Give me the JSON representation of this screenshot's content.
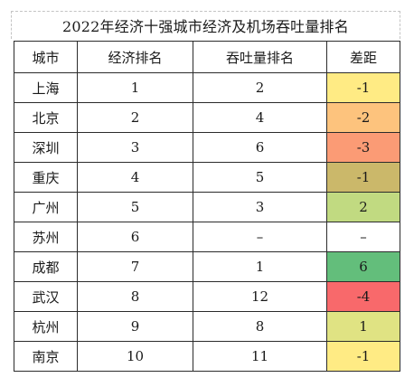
{
  "title": "2022年经济十强城市经济及机场吞吐量排名",
  "headers": {
    "city": "城市",
    "economy_rank": "经济排名",
    "throughput_rank": "吞吐量排名",
    "gap": "差距"
  },
  "rows": [
    {
      "city": "上海",
      "economy_rank": "1",
      "throughput_rank": "2",
      "gap": "-1",
      "gap_color": "#ffeb84"
    },
    {
      "city": "北京",
      "economy_rank": "2",
      "throughput_rank": "4",
      "gap": "-2",
      "gap_color": "#fdc37d"
    },
    {
      "city": "深圳",
      "economy_rank": "3",
      "throughput_rank": "6",
      "gap": "-3",
      "gap_color": "#fb9b75"
    },
    {
      "city": "重庆",
      "economy_rank": "4",
      "throughput_rank": "5",
      "gap": "-1",
      "gap_color": "#cbb86a"
    },
    {
      "city": "广州",
      "economy_rank": "5",
      "throughput_rank": "3",
      "gap": "2",
      "gap_color": "#c1da81"
    },
    {
      "city": "苏州",
      "economy_rank": "6",
      "throughput_rank": "–",
      "gap": "–",
      "gap_color": "#ffffff"
    },
    {
      "city": "成都",
      "economy_rank": "7",
      "throughput_rank": "1",
      "gap": "6",
      "gap_color": "#63be7b"
    },
    {
      "city": "武汉",
      "economy_rank": "8",
      "throughput_rank": "12",
      "gap": "-4",
      "gap_color": "#f8696b"
    },
    {
      "city": "杭州",
      "economy_rank": "9",
      "throughput_rank": "8",
      "gap": "1",
      "gap_color": "#e0e383"
    },
    {
      "city": "南京",
      "economy_rank": "10",
      "throughput_rank": "11",
      "gap": "-1",
      "gap_color": "#ffeb84"
    }
  ]
}
